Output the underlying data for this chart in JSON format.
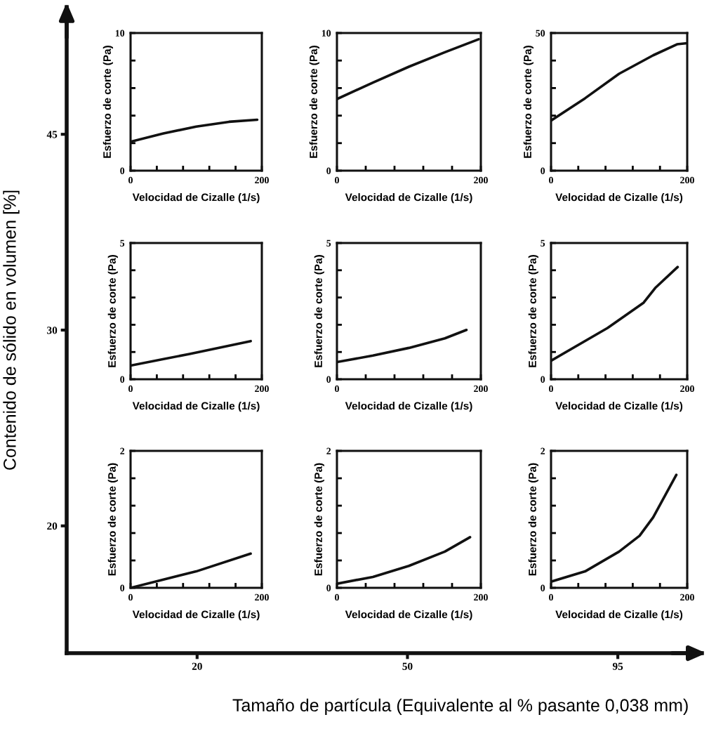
{
  "chart_data": [
    {
      "type": "other",
      "xlabel": "Tamaño de partícula (Equivalente al % pasante 0,038 mm)",
      "ylabel": "Contenido de sólido en volumen [%]",
      "categories": [
        "20",
        "50",
        "95"
      ],
      "y_categories": [
        "45",
        "30",
        "20"
      ]
    },
    {
      "type": "line",
      "xlabel": "Velocidad de Cizalle (1/s)",
      "ylabel": "Esfuerzo de corte (Pa)",
      "xlim": [
        0,
        200
      ],
      "xticks": [
        0,
        {
          "value": 40,
          "label": null
        },
        {
          "value": 80,
          "label": null
        },
        {
          "value": 120,
          "label": null
        },
        {
          "value": 160,
          "label": null
        },
        200
      ],
      "ylim": [
        0,
        10
      ],
      "yticks": [
        0,
        {
          "value": 2,
          "label": null
        },
        {
          "value": 4,
          "label": null
        },
        {
          "value": 6,
          "label": null
        },
        {
          "value": 8,
          "label": null
        },
        10
      ],
      "series": [
        {
          "color": "#111111",
          "x": [
            0,
            50,
            100,
            150,
            193
          ],
          "values": [
            2.1,
            2.7,
            3.2,
            3.55,
            3.7
          ]
        }
      ]
    },
    {
      "type": "line",
      "xlabel": "Velocidad de Cizalle (1/s)",
      "ylabel": "Esfuerzo de corte (Pa)",
      "xlim": [
        0,
        200
      ],
      "xticks": [
        0,
        {
          "value": 40,
          "label": null
        },
        {
          "value": 80,
          "label": null
        },
        {
          "value": 120,
          "label": null
        },
        {
          "value": 160,
          "label": null
        },
        200
      ],
      "ylim": [
        0,
        10
      ],
      "yticks": [
        0,
        {
          "value": 2,
          "label": null
        },
        {
          "value": 4,
          "label": null
        },
        {
          "value": 6,
          "label": null
        },
        {
          "value": 8,
          "label": null
        },
        10
      ],
      "series": [
        {
          "color": "#111111",
          "x": [
            0,
            50,
            100,
            150,
            197
          ],
          "values": [
            5.2,
            6.4,
            7.55,
            8.6,
            9.55
          ]
        }
      ]
    },
    {
      "type": "line",
      "xlabel": "Velocidad de Cizalle (1/s)",
      "ylabel": "Esfuerzo de corte (Pa)",
      "xlim": [
        0,
        200
      ],
      "xticks": [
        0,
        {
          "value": 40,
          "label": null
        },
        {
          "value": 80,
          "label": null
        },
        {
          "value": 120,
          "label": null
        },
        {
          "value": 160,
          "label": null
        },
        200
      ],
      "ylim": [
        0,
        50
      ],
      "yticks": [
        0,
        {
          "value": 10,
          "label": null
        },
        {
          "value": 20,
          "label": null
        },
        {
          "value": 30,
          "label": null
        },
        {
          "value": 40,
          "label": null
        },
        50
      ],
      "series": [
        {
          "color": "#111111",
          "x": [
            0,
            50,
            100,
            150,
            185,
            200
          ],
          "values": [
            18.2,
            26.3,
            35.2,
            41.9,
            45.9,
            46.3
          ]
        }
      ]
    },
    {
      "type": "line",
      "xlabel": "Velocidad de Cizalle (1/s)",
      "ylabel": "Esfuerzo de corte (Pa)",
      "xlim": [
        0,
        200
      ],
      "xticks": [
        0,
        {
          "value": 40,
          "label": null
        },
        {
          "value": 80,
          "label": null
        },
        {
          "value": 120,
          "label": null
        },
        {
          "value": 160,
          "label": null
        },
        200
      ],
      "ylim": [
        0,
        5
      ],
      "yticks": [
        0,
        {
          "value": 1,
          "label": null
        },
        {
          "value": 2,
          "label": null
        },
        {
          "value": 3,
          "label": null
        },
        {
          "value": 4,
          "label": null
        },
        5
      ],
      "series": [
        {
          "color": "#111111",
          "x": [
            0,
            90,
            183
          ],
          "values": [
            0.5,
            0.93,
            1.4
          ]
        }
      ]
    },
    {
      "type": "line",
      "xlabel": "Velocidad de Cizalle (1/s)",
      "ylabel": "Esfuerzo de corte (Pa)",
      "xlim": [
        0,
        200
      ],
      "xticks": [
        0,
        {
          "value": 40,
          "label": null
        },
        {
          "value": 80,
          "label": null
        },
        {
          "value": 120,
          "label": null
        },
        {
          "value": 160,
          "label": null
        },
        200
      ],
      "ylim": [
        0,
        5
      ],
      "yticks": [
        0,
        {
          "value": 1,
          "label": null
        },
        {
          "value": 2,
          "label": null
        },
        {
          "value": 3,
          "label": null
        },
        {
          "value": 4,
          "label": null
        },
        5
      ],
      "series": [
        {
          "color": "#111111",
          "x": [
            0,
            50,
            100,
            150,
            180
          ],
          "values": [
            0.63,
            0.87,
            1.15,
            1.5,
            1.81
          ]
        }
      ]
    },
    {
      "type": "line",
      "xlabel": "Velocidad de Cizalle (1/s)",
      "ylabel": "Esfuerzo de corte (Pa)",
      "xlim": [
        0,
        200
      ],
      "xticks": [
        0,
        {
          "value": 40,
          "label": null
        },
        {
          "value": 80,
          "label": null
        },
        {
          "value": 120,
          "label": null
        },
        {
          "value": 160,
          "label": null
        },
        200
      ],
      "ylim": [
        0,
        5
      ],
      "yticks": [
        0,
        {
          "value": 1,
          "label": null
        },
        {
          "value": 2,
          "label": null
        },
        {
          "value": 3,
          "label": null
        },
        {
          "value": 4,
          "label": null
        },
        5
      ],
      "series": [
        {
          "color": "#111111",
          "x": [
            0,
            83,
            136,
            153,
            186
          ],
          "values": [
            0.68,
            1.88,
            2.81,
            3.35,
            4.12
          ]
        }
      ]
    },
    {
      "type": "line",
      "xlabel": "Velocidad de Cizalle (1/s)",
      "ylabel": "Esfuerzo de corte (Pa)",
      "xlim": [
        0,
        200
      ],
      "xticks": [
        0,
        {
          "value": 40,
          "label": null
        },
        {
          "value": 80,
          "label": null
        },
        {
          "value": 120,
          "label": null
        },
        {
          "value": 160,
          "label": null
        },
        200
      ],
      "ylim": [
        0,
        2
      ],
      "yticks": [
        0,
        {
          "value": 0.4,
          "label": null
        },
        {
          "value": 0.8,
          "label": null
        },
        {
          "value": 1.2,
          "label": null
        },
        {
          "value": 1.6,
          "label": null
        },
        2
      ],
      "series": [
        {
          "color": "#111111",
          "x": [
            0,
            100,
            183
          ],
          "values": [
            0.0,
            0.24,
            0.5
          ]
        }
      ]
    },
    {
      "type": "line",
      "xlabel": "Velocidad de Cizalle (1/s)",
      "ylabel": "Esfuerzo de corte (Pa)",
      "xlim": [
        0,
        200
      ],
      "xticks": [
        0,
        {
          "value": 40,
          "label": null
        },
        {
          "value": 80,
          "label": null
        },
        {
          "value": 120,
          "label": null
        },
        {
          "value": 160,
          "label": null
        },
        200
      ],
      "ylim": [
        0,
        2
      ],
      "yticks": [
        0,
        {
          "value": 0.4,
          "label": null
        },
        {
          "value": 0.8,
          "label": null
        },
        {
          "value": 1.2,
          "label": null
        },
        {
          "value": 1.6,
          "label": null
        },
        2
      ],
      "series": [
        {
          "color": "#111111",
          "x": [
            0,
            50,
            100,
            150,
            185
          ],
          "values": [
            0.06,
            0.16,
            0.32,
            0.53,
            0.74
          ]
        }
      ]
    },
    {
      "type": "line",
      "xlabel": "Velocidad de Cizalle (1/s)",
      "ylabel": "Esfuerzo de corte (Pa)",
      "xlim": [
        0,
        200
      ],
      "xticks": [
        0,
        {
          "value": 40,
          "label": null
        },
        {
          "value": 80,
          "label": null
        },
        {
          "value": 120,
          "label": null
        },
        {
          "value": 160,
          "label": null
        },
        200
      ],
      "ylim": [
        0,
        2
      ],
      "yticks": [
        0,
        {
          "value": 0.4,
          "label": null
        },
        {
          "value": 0.8,
          "label": null
        },
        {
          "value": 1.2,
          "label": null
        },
        {
          "value": 1.6,
          "label": null
        },
        2
      ],
      "series": [
        {
          "color": "#111111",
          "x": [
            0,
            50,
            100,
            130,
            150,
            184
          ],
          "values": [
            0.09,
            0.24,
            0.53,
            0.76,
            1.03,
            1.65
          ]
        }
      ]
    }
  ]
}
